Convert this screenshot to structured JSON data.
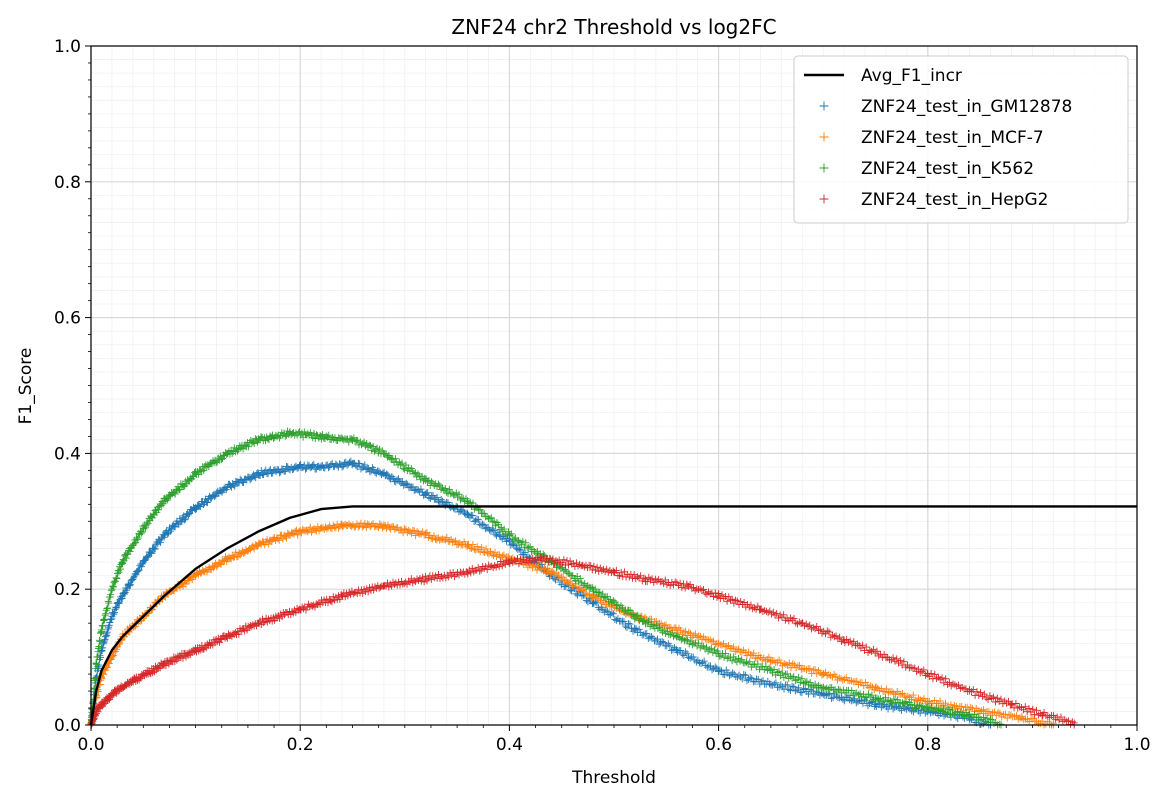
{
  "chart_data": {
    "type": "scatter",
    "title": "ZNF24 chr2 Threshold vs log2FC",
    "xlabel": "Threshold",
    "ylabel": "F1_Score",
    "xlim": [
      0.0,
      1.0
    ],
    "ylim": [
      0.0,
      1.0
    ],
    "xticks": [
      "0.0",
      "0.2",
      "0.4",
      "0.6",
      "0.8",
      "1.0"
    ],
    "yticks": [
      "0.0",
      "0.2",
      "0.4",
      "0.6",
      "0.8",
      "1.0"
    ],
    "grid": "major and minor",
    "legend_position": "top-right",
    "series": [
      {
        "name": "Avg_F1_incr",
        "kind": "line",
        "color": "#000000",
        "points": [
          [
            0.0,
            0.0
          ],
          [
            0.005,
            0.05
          ],
          [
            0.01,
            0.08
          ],
          [
            0.02,
            0.11
          ],
          [
            0.03,
            0.13
          ],
          [
            0.05,
            0.16
          ],
          [
            0.07,
            0.19
          ],
          [
            0.1,
            0.23
          ],
          [
            0.13,
            0.26
          ],
          [
            0.16,
            0.285
          ],
          [
            0.19,
            0.305
          ],
          [
            0.22,
            0.318
          ],
          [
            0.25,
            0.322
          ],
          [
            0.3,
            0.322
          ],
          [
            0.4,
            0.322
          ],
          [
            0.5,
            0.322
          ],
          [
            0.6,
            0.322
          ],
          [
            0.7,
            0.322
          ],
          [
            0.8,
            0.322
          ],
          [
            0.9,
            0.322
          ],
          [
            1.0,
            0.322
          ]
        ]
      },
      {
        "name": "ZNF24_test_in_GM12878",
        "kind": "marker",
        "marker": "+",
        "color": "#1f77b4",
        "points": [
          [
            0.0,
            0.0
          ],
          [
            0.005,
            0.07
          ],
          [
            0.01,
            0.11
          ],
          [
            0.02,
            0.16
          ],
          [
            0.03,
            0.19
          ],
          [
            0.05,
            0.24
          ],
          [
            0.07,
            0.28
          ],
          [
            0.1,
            0.32
          ],
          [
            0.13,
            0.35
          ],
          [
            0.16,
            0.37
          ],
          [
            0.2,
            0.38
          ],
          [
            0.22,
            0.38
          ],
          [
            0.25,
            0.385
          ],
          [
            0.28,
            0.37
          ],
          [
            0.32,
            0.34
          ],
          [
            0.36,
            0.31
          ],
          [
            0.4,
            0.27
          ],
          [
            0.44,
            0.22
          ],
          [
            0.48,
            0.18
          ],
          [
            0.52,
            0.14
          ],
          [
            0.56,
            0.11
          ],
          [
            0.6,
            0.08
          ],
          [
            0.65,
            0.06
          ],
          [
            0.7,
            0.045
          ],
          [
            0.75,
            0.03
          ],
          [
            0.8,
            0.02
          ],
          [
            0.84,
            0.01
          ],
          [
            0.86,
            0.0
          ]
        ]
      },
      {
        "name": "ZNF24_test_in_MCF-7",
        "kind": "marker",
        "marker": "+",
        "color": "#ff7f0e",
        "points": [
          [
            0.0,
            0.0
          ],
          [
            0.005,
            0.04
          ],
          [
            0.01,
            0.07
          ],
          [
            0.02,
            0.1
          ],
          [
            0.03,
            0.13
          ],
          [
            0.05,
            0.16
          ],
          [
            0.07,
            0.19
          ],
          [
            0.1,
            0.22
          ],
          [
            0.13,
            0.245
          ],
          [
            0.16,
            0.265
          ],
          [
            0.2,
            0.285
          ],
          [
            0.24,
            0.295
          ],
          [
            0.28,
            0.292
          ],
          [
            0.32,
            0.28
          ],
          [
            0.36,
            0.265
          ],
          [
            0.4,
            0.245
          ],
          [
            0.44,
            0.225
          ],
          [
            0.48,
            0.19
          ],
          [
            0.52,
            0.16
          ],
          [
            0.56,
            0.14
          ],
          [
            0.6,
            0.12
          ],
          [
            0.65,
            0.095
          ],
          [
            0.7,
            0.075
          ],
          [
            0.75,
            0.055
          ],
          [
            0.8,
            0.035
          ],
          [
            0.85,
            0.02
          ],
          [
            0.89,
            0.01
          ],
          [
            0.92,
            0.0
          ]
        ]
      },
      {
        "name": "ZNF24_test_in_K562",
        "kind": "marker",
        "marker": "+",
        "color": "#2ca02c",
        "points": [
          [
            0.0,
            0.0
          ],
          [
            0.005,
            0.09
          ],
          [
            0.01,
            0.14
          ],
          [
            0.02,
            0.2
          ],
          [
            0.03,
            0.24
          ],
          [
            0.05,
            0.29
          ],
          [
            0.07,
            0.33
          ],
          [
            0.1,
            0.37
          ],
          [
            0.13,
            0.4
          ],
          [
            0.16,
            0.42
          ],
          [
            0.19,
            0.43
          ],
          [
            0.22,
            0.425
          ],
          [
            0.25,
            0.42
          ],
          [
            0.28,
            0.4
          ],
          [
            0.32,
            0.36
          ],
          [
            0.36,
            0.33
          ],
          [
            0.4,
            0.28
          ],
          [
            0.44,
            0.24
          ],
          [
            0.48,
            0.2
          ],
          [
            0.52,
            0.16
          ],
          [
            0.56,
            0.13
          ],
          [
            0.6,
            0.105
          ],
          [
            0.65,
            0.08
          ],
          [
            0.7,
            0.055
          ],
          [
            0.75,
            0.04
          ],
          [
            0.8,
            0.025
          ],
          [
            0.84,
            0.015
          ],
          [
            0.87,
            0.0
          ]
        ]
      },
      {
        "name": "ZNF24_test_in_HepG2",
        "kind": "marker",
        "marker": "+",
        "color": "#d62728",
        "points": [
          [
            0.0,
            0.0
          ],
          [
            0.005,
            0.02
          ],
          [
            0.01,
            0.03
          ],
          [
            0.02,
            0.045
          ],
          [
            0.04,
            0.065
          ],
          [
            0.07,
            0.09
          ],
          [
            0.1,
            0.11
          ],
          [
            0.13,
            0.13
          ],
          [
            0.16,
            0.15
          ],
          [
            0.2,
            0.17
          ],
          [
            0.24,
            0.19
          ],
          [
            0.28,
            0.205
          ],
          [
            0.32,
            0.215
          ],
          [
            0.36,
            0.225
          ],
          [
            0.4,
            0.24
          ],
          [
            0.43,
            0.245
          ],
          [
            0.47,
            0.235
          ],
          [
            0.5,
            0.225
          ],
          [
            0.53,
            0.215
          ],
          [
            0.57,
            0.205
          ],
          [
            0.6,
            0.19
          ],
          [
            0.64,
            0.17
          ],
          [
            0.68,
            0.15
          ],
          [
            0.72,
            0.125
          ],
          [
            0.76,
            0.1
          ],
          [
            0.8,
            0.075
          ],
          [
            0.84,
            0.05
          ],
          [
            0.88,
            0.03
          ],
          [
            0.91,
            0.015
          ],
          [
            0.94,
            0.003
          ]
        ]
      }
    ]
  }
}
